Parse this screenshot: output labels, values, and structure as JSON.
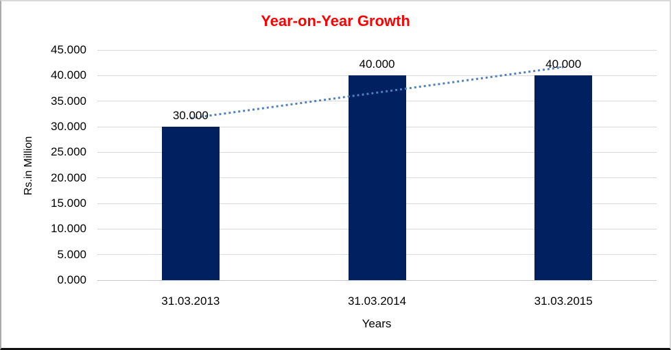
{
  "chart_data": {
    "type": "bar",
    "title": "Year-on-Year Growth",
    "title_color": "#ff0000",
    "categories": [
      "31.03.2013",
      "31.03.2014",
      "31.03.2015"
    ],
    "values": [
      30.0,
      40.0,
      40.0
    ],
    "data_labels": [
      "30.000",
      "40.000",
      "40.000"
    ],
    "xlabel": "Years",
    "ylabel": "Rs.in Million",
    "ylim": [
      0,
      45
    ],
    "ytick_step": 5,
    "ytick_labels": [
      "0.000",
      "5.000",
      "10.000",
      "15.000",
      "20.000",
      "25.000",
      "30.000",
      "35.000",
      "40.000",
      "45.000"
    ],
    "grid": true,
    "legend": "none",
    "bar_color": "#002060",
    "gridline_color": "#d9d9d9",
    "label_color": "#000000",
    "trendline": {
      "type": "linear",
      "style": "dotted",
      "color": "#4f81bd",
      "start_value": 31.667,
      "end_value": 41.667
    }
  }
}
